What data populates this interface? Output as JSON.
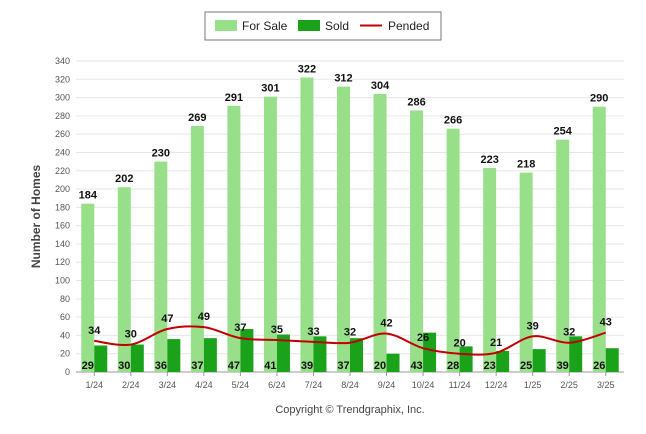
{
  "chart_data": {
    "type": "bar",
    "categories": [
      "1/24",
      "2/24",
      "3/24",
      "4/24",
      "5/24",
      "6/24",
      "7/24",
      "8/24",
      "9/24",
      "10/24",
      "11/24",
      "12/24",
      "1/25",
      "2/25",
      "3/25"
    ],
    "series": [
      {
        "name": "For Sale",
        "kind": "bar",
        "color": "#98df8a",
        "values": [
          184,
          202,
          230,
          269,
          291,
          301,
          322,
          312,
          304,
          286,
          266,
          223,
          218,
          254,
          290
        ]
      },
      {
        "name": "Sold",
        "kind": "bar",
        "color": "#1aa31a",
        "values": [
          29,
          30,
          36,
          37,
          47,
          41,
          39,
          37,
          20,
          43,
          28,
          23,
          25,
          39,
          26
        ]
      },
      {
        "name": "Pended",
        "kind": "line",
        "color": "#c00000",
        "values": [
          34,
          30,
          47,
          49,
          37,
          35,
          33,
          32,
          42,
          26,
          20,
          21,
          39,
          32,
          43
        ]
      }
    ],
    "ylabel": "Number of Homes",
    "xlabel": "",
    "ylim": [
      0,
      340
    ],
    "yticks": [
      0,
      20,
      40,
      60,
      80,
      100,
      120,
      140,
      160,
      180,
      200,
      220,
      240,
      260,
      280,
      300,
      320,
      340
    ],
    "grid": true,
    "legend_position": "top-center",
    "credit": "Copyright © Trendgraphix, Inc."
  }
}
